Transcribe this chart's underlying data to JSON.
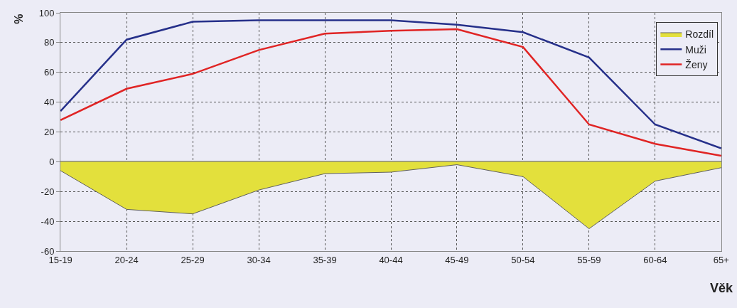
{
  "chart_data": {
    "type": "line",
    "xlabel": "Věk",
    "ylabel": "%",
    "categories": [
      "15-19",
      "20-24",
      "25-29",
      "30-34",
      "35-39",
      "40-44",
      "45-49",
      "50-54",
      "55-59",
      "60-64",
      "65+"
    ],
    "series": [
      {
        "name": "Rozdíl",
        "type": "area",
        "color": "#e3e03c",
        "values": [
          -6,
          -32,
          -35,
          -19,
          -8,
          -7,
          -2,
          -10,
          -45,
          -13,
          -4
        ]
      },
      {
        "name": "Muži",
        "color": "#26308a",
        "values": [
          34,
          82,
          94,
          95,
          95,
          95,
          92,
          87,
          70,
          25,
          9
        ]
      },
      {
        "name": "Ženy",
        "color": "#e02424",
        "values": [
          28,
          49,
          59,
          75,
          86,
          88,
          89,
          77,
          25,
          12,
          4
        ]
      }
    ],
    "ylim": [
      -60,
      100
    ],
    "yticks": [
      -60,
      -40,
      -20,
      0,
      20,
      40,
      60,
      80,
      100
    ],
    "grid": true,
    "legend": "top right",
    "line_style": "solid",
    "marker": "none"
  }
}
